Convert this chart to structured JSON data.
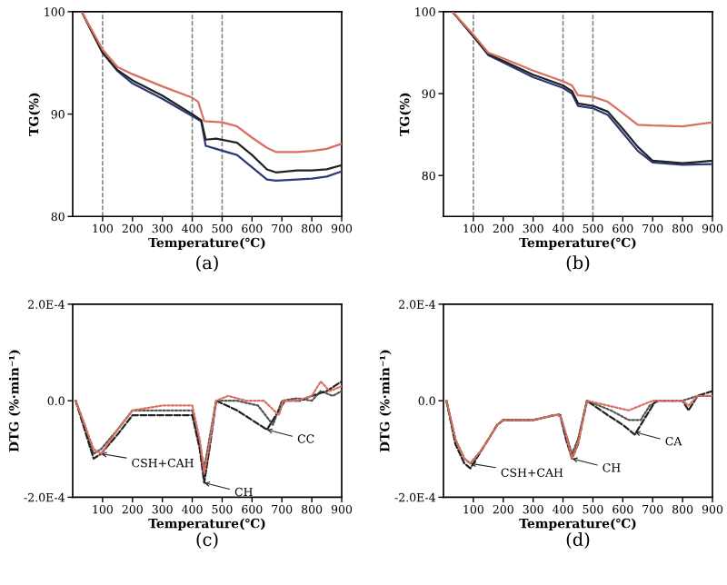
{
  "chart_data": [
    {
      "type": "line",
      "title": "(a)",
      "xlabel": "Temperature(℃)",
      "ylabel": "TG(%)",
      "xlim": [
        0,
        900
      ],
      "xticks": [
        100,
        200,
        300,
        400,
        500,
        600,
        700,
        800,
        900
      ],
      "ylim": [
        80,
        100
      ],
      "yticks": [
        80,
        90,
        100
      ],
      "grid": false,
      "line_style": "solid",
      "ref_lines": [
        {
          "axis": "x",
          "value": 100,
          "color": "#888888",
          "line_style": "dashed"
        },
        {
          "axis": "x",
          "value": 400,
          "color": "#888888",
          "line_style": "dashed"
        },
        {
          "axis": "x",
          "value": 500,
          "color": "#888888",
          "line_style": "dashed"
        }
      ],
      "series": [
        {
          "color": "#d9705f",
          "x": [
            30,
            100,
            150,
            200,
            300,
            400,
            420,
            440,
            500,
            550,
            600,
            650,
            680,
            750,
            800,
            850,
            900
          ],
          "values": [
            100,
            96.3,
            94.6,
            93.9,
            92.7,
            91.6,
            91.2,
            89.3,
            89.2,
            88.8,
            87.7,
            86.7,
            86.3,
            86.3,
            86.4,
            86.6,
            87.1
          ]
        },
        {
          "color": "#222222",
          "x": [
            30,
            100,
            150,
            200,
            300,
            400,
            430,
            445,
            480,
            550,
            600,
            650,
            680,
            750,
            800,
            850,
            900
          ],
          "values": [
            100,
            96.0,
            94.3,
            93.3,
            91.8,
            90.0,
            89.4,
            87.5,
            87.6,
            87.2,
            86.0,
            84.6,
            84.3,
            84.5,
            84.5,
            84.6,
            85.0
          ]
        },
        {
          "color": "#2e3a78",
          "x": [
            30,
            100,
            150,
            200,
            300,
            400,
            430,
            445,
            480,
            550,
            600,
            650,
            680,
            750,
            800,
            850,
            900
          ],
          "values": [
            100,
            96.0,
            94.2,
            93.0,
            91.5,
            89.8,
            89.3,
            86.9,
            86.6,
            86.0,
            84.8,
            83.6,
            83.5,
            83.6,
            83.7,
            83.9,
            84.4
          ]
        }
      ]
    },
    {
      "type": "line",
      "title": "(b)",
      "xlabel": "Temperature(℃)",
      "ylabel": "TG(%)",
      "xlim": [
        0,
        900
      ],
      "xticks": [
        100,
        200,
        300,
        400,
        500,
        600,
        700,
        800,
        900
      ],
      "ylim": [
        75,
        100
      ],
      "yticks": [
        80,
        90,
        100
      ],
      "grid": false,
      "line_style": "solid",
      "ref_lines": [
        {
          "axis": "x",
          "value": 100,
          "color": "#888888",
          "line_style": "dashed"
        },
        {
          "axis": "x",
          "value": 400,
          "color": "#888888",
          "line_style": "dashed"
        },
        {
          "axis": "x",
          "value": 500,
          "color": "#888888",
          "line_style": "dashed"
        }
      ],
      "series": [
        {
          "color": "#d9705f",
          "x": [
            30,
            100,
            150,
            200,
            300,
            400,
            430,
            450,
            500,
            550,
            600,
            650,
            700,
            800,
            900
          ],
          "values": [
            100,
            97.2,
            95.0,
            94.3,
            92.8,
            91.5,
            91.0,
            89.8,
            89.6,
            89.0,
            87.6,
            86.2,
            86.1,
            86.0,
            86.5
          ]
        },
        {
          "color": "#222222",
          "x": [
            30,
            100,
            150,
            200,
            300,
            400,
            430,
            450,
            500,
            550,
            600,
            650,
            700,
            800,
            900
          ],
          "values": [
            100,
            97.0,
            94.8,
            94.0,
            92.3,
            91.0,
            90.3,
            88.8,
            88.5,
            87.8,
            85.7,
            83.5,
            81.8,
            81.5,
            81.8
          ]
        },
        {
          "color": "#2e3a78",
          "x": [
            30,
            100,
            150,
            200,
            300,
            400,
            430,
            450,
            500,
            550,
            600,
            650,
            700,
            800,
            900
          ],
          "values": [
            100,
            97.0,
            94.7,
            93.8,
            92.0,
            90.7,
            90.0,
            88.5,
            88.2,
            87.4,
            85.2,
            83.0,
            81.6,
            81.3,
            81.4
          ]
        }
      ]
    },
    {
      "type": "line",
      "title": "(c)",
      "xlabel": "Temperature(℃)",
      "ylabel": "DTG (%·min⁻¹)",
      "xlim": [
        0,
        900
      ],
      "xticks": [
        100,
        200,
        300,
        400,
        500,
        600,
        700,
        800,
        900
      ],
      "ylim": [
        -0.0002,
        0.0002
      ],
      "yticks": [
        {
          "value": -0.0002,
          "label": "-2.0E-4"
        },
        {
          "value": 0,
          "label": "0.0"
        },
        {
          "value": 0.0002,
          "label": "2.0E-4"
        }
      ],
      "grid": false,
      "annotations": [
        {
          "text": "CSH+CAH",
          "x": 95,
          "y": -0.00011
        },
        {
          "text": "CH",
          "x": 440,
          "y": -0.00017
        },
        {
          "text": "CC",
          "x": 650,
          "y": -6e-05
        }
      ],
      "series": [
        {
          "color": "#d9705f",
          "line_style": "dotted",
          "x": [
            10,
            40,
            70,
            95,
            150,
            200,
            300,
            400,
            425,
            440,
            460,
            480,
            520,
            580,
            640,
            690,
            705,
            750,
            800,
            830,
            860,
            900
          ],
          "values": [
            0,
            -5e-05,
            -0.0001,
            -0.00011,
            -6e-05,
            -2e-05,
            -1e-05,
            -1e-05,
            -8e-05,
            -0.00015,
            -8e-05,
            0,
            1e-05,
            0,
            0,
            -3e-05,
            0,
            0,
            1e-05,
            4e-05,
            2e-05,
            3e-05
          ]
        },
        {
          "color": "#222222",
          "line_style": "dashed",
          "x": [
            10,
            40,
            70,
            95,
            150,
            200,
            300,
            400,
            425,
            440,
            460,
            480,
            550,
            600,
            650,
            690,
            710,
            760,
            800,
            850,
            900
          ],
          "values": [
            0,
            -6e-05,
            -0.00012,
            -0.00011,
            -7e-05,
            -3e-05,
            -3e-05,
            -3e-05,
            -0.0001,
            -0.00017,
            -9e-05,
            0,
            -2e-05,
            -4e-05,
            -6e-05,
            -2e-05,
            0,
            0,
            1e-05,
            2e-05,
            4e-05
          ]
        },
        {
          "color": "#555555",
          "line_style": "dotted",
          "x": [
            10,
            40,
            70,
            95,
            150,
            200,
            300,
            400,
            425,
            440,
            460,
            480,
            550,
            620,
            670,
            700,
            750,
            800,
            830,
            870,
            900
          ],
          "values": [
            0,
            -5e-05,
            -0.00011,
            -0.0001,
            -6e-05,
            -2e-05,
            -2e-05,
            -2e-05,
            -9e-05,
            -0.00014,
            -7e-05,
            0,
            0,
            -1e-05,
            -5e-05,
            0,
            5e-06,
            0,
            2e-05,
            1e-05,
            2e-05
          ]
        }
      ]
    },
    {
      "type": "line",
      "title": "(d)",
      "xlabel": "Temperature(℃)",
      "ylabel": "DTG (%·min⁻¹)",
      "xlim": [
        0,
        900
      ],
      "xticks": [
        100,
        200,
        300,
        400,
        500,
        600,
        700,
        800,
        900
      ],
      "ylim": [
        -0.0002,
        0.0002
      ],
      "yticks": [
        {
          "value": -0.0002,
          "label": "-2.0E-4"
        },
        {
          "value": 0,
          "label": "0.0"
        },
        {
          "value": 0.0002,
          "label": "2.0E-4"
        }
      ],
      "grid": false,
      "annotations": [
        {
          "text": "CSH+CAH",
          "x": 90,
          "y": -0.00013
        },
        {
          "text": "CH",
          "x": 430,
          "y": -0.00012
        },
        {
          "text": "CA",
          "x": 640,
          "y": -6.5e-05
        }
      ],
      "series": [
        {
          "color": "#d9705f",
          "line_style": "dotted",
          "x": [
            10,
            40,
            70,
            90,
            130,
            180,
            200,
            300,
            370,
            390,
            410,
            430,
            450,
            480,
            550,
            620,
            660,
            700,
            750,
            800,
            820,
            850,
            900
          ],
          "values": [
            0,
            -8e-05,
            -0.00012,
            -0.00013,
            -0.0001,
            -5e-05,
            -4e-05,
            -4e-05,
            -3e-05,
            -3e-05,
            -7e-05,
            -0.00012,
            -9e-05,
            0,
            -1e-05,
            -2e-05,
            -1e-05,
            0,
            0,
            0,
            -1e-05,
            1e-05,
            1e-05
          ]
        },
        {
          "color": "#222222",
          "line_style": "dashed",
          "x": [
            10,
            40,
            70,
            90,
            130,
            180,
            200,
            300,
            370,
            390,
            410,
            430,
            450,
            480,
            550,
            600,
            640,
            680,
            710,
            750,
            800,
            820,
            850,
            900
          ],
          "values": [
            0,
            -9e-05,
            -0.00013,
            -0.00014,
            -0.0001,
            -5e-05,
            -4e-05,
            -4e-05,
            -3e-05,
            -3e-05,
            -8e-05,
            -0.00012,
            -9e-05,
            0,
            -3e-05,
            -5e-05,
            -7e-05,
            -3e-05,
            0,
            0,
            0,
            -2e-05,
            1e-05,
            2e-05
          ]
        },
        {
          "color": "#555555",
          "line_style": "dotted",
          "x": [
            10,
            40,
            70,
            90,
            130,
            180,
            200,
            300,
            370,
            390,
            410,
            430,
            450,
            480,
            560,
            620,
            660,
            690,
            720,
            800,
            850,
            900
          ],
          "values": [
            0,
            -8e-05,
            -0.00012,
            -0.00013,
            -0.0001,
            -5e-05,
            -4e-05,
            -4e-05,
            -3e-05,
            -2.8e-05,
            -7e-05,
            -0.00011,
            -8e-05,
            0,
            -2e-05,
            -4e-05,
            -4e-05,
            -1e-05,
            0,
            0,
            1e-05,
            1e-05
          ]
        }
      ]
    }
  ]
}
